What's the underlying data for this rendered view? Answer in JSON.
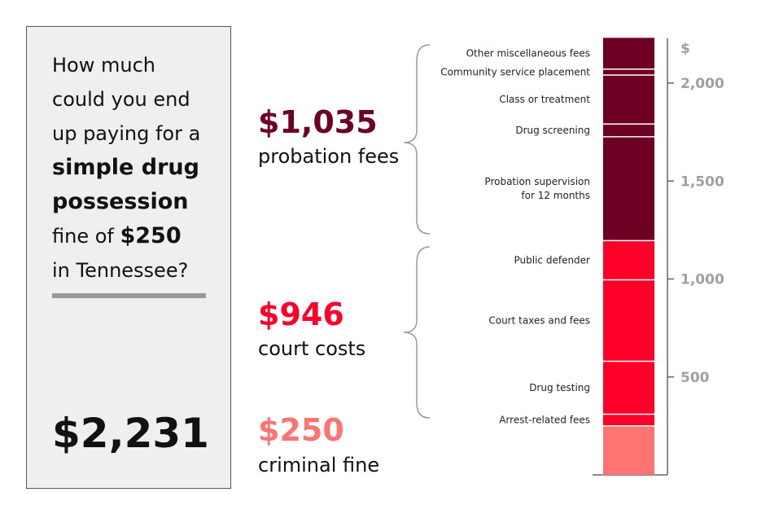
{
  "question": {
    "l1": "How much",
    "l2": "could you end",
    "l3": "up paying for a",
    "l4": "simple drug",
    "l5": "possession",
    "l6a": "fine of ",
    "l6b": "$250",
    "l7": "in Tennessee?"
  },
  "total": "$2,231",
  "groups": [
    {
      "amount": "$1,035",
      "label": "probation fees",
      "color": "#6e0024"
    },
    {
      "amount": "$946",
      "label": "court costs",
      "color": "#ff0028"
    },
    {
      "amount": "$250",
      "label": "criminal fine",
      "color": "#ff7373"
    }
  ],
  "chart_data": {
    "type": "bar",
    "stacked": true,
    "yunit": "$",
    "ylim": [
      0,
      2231
    ],
    "yticks": [
      {
        "v": 500,
        "label": "500"
      },
      {
        "v": 1000,
        "label": "1,000"
      },
      {
        "v": 1500,
        "label": "1,500"
      },
      {
        "v": 2000,
        "label": "2,000"
      }
    ],
    "segments": [
      {
        "label": "",
        "value": 250,
        "color": "#ff7373"
      },
      {
        "label": "Arrest-related fees",
        "value": 60,
        "color": "#ff0028"
      },
      {
        "label": "Drug testing",
        "value": 270,
        "color": "#ff0028"
      },
      {
        "label": "Court taxes and fees",
        "value": 416,
        "color": "#ff0028"
      },
      {
        "label": "Public defender",
        "value": 200,
        "color": "#ff0028"
      },
      {
        "label": "Probation supervision|for 12 months",
        "value": 530,
        "color": "#6e0024"
      },
      {
        "label": "Drug screening",
        "value": 65,
        "color": "#6e0024"
      },
      {
        "label": "Class or treatment",
        "value": 250,
        "color": "#6e0024"
      },
      {
        "label": "Community service placement",
        "value": 30,
        "color": "#6e0024"
      },
      {
        "label": "Other miscellaneous fees",
        "value": 160,
        "color": "#6e0024"
      }
    ]
  }
}
